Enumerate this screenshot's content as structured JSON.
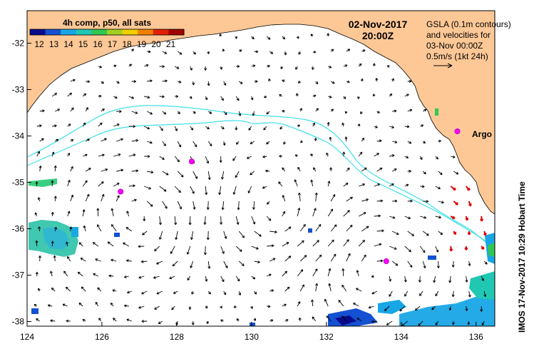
{
  "colorbar": {
    "title": "4h comp, p50, all sats",
    "ticks": [
      "12",
      "13",
      "14",
      "15",
      "16",
      "17",
      "18",
      "19",
      "20",
      "21"
    ],
    "colors": [
      "#0a0a8c",
      "#1450d2",
      "#18a6e6",
      "#20c8b4",
      "#30c850",
      "#a0d020",
      "#f0d000",
      "#f08000",
      "#e02000",
      "#a00000"
    ]
  },
  "header": {
    "date": "02-Nov-2017",
    "time": "20:00Z"
  },
  "legend": {
    "lines": [
      "GSLA (0.1m contours)",
      "and velocities for",
      "03-Nov 00:00Z",
      "0.5m/s (1kt 24h)"
    ]
  },
  "argo_label": "Argo",
  "credit": "IMOS 17-Nov-2017 10:29 Hobart Time",
  "axes": {
    "x_ticks": [
      "124",
      "126",
      "128",
      "130",
      "132",
      "134",
      "136"
    ],
    "y_ticks": [
      "-32",
      "-33",
      "-34",
      "-35",
      "-36",
      "-37",
      "-38"
    ],
    "xlim": [
      124,
      136.5
    ],
    "ylim": [
      -38.1,
      -31.3
    ]
  },
  "argo_floats": [
    {
      "lon": 126.5,
      "lat": -35.2
    },
    {
      "lon": 128.4,
      "lat": -34.55
    },
    {
      "lon": 133.6,
      "lat": -36.7
    },
    {
      "lon": 135.5,
      "lat": -33.9
    }
  ],
  "colors": {
    "land": "#fdc896",
    "contour": "#40e0e8",
    "argo": "#ff00ff",
    "arrow": "#000000",
    "fast_arrow": "#e00000"
  }
}
